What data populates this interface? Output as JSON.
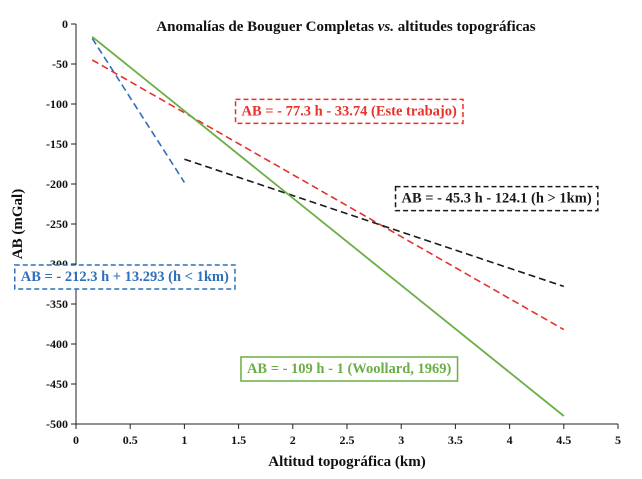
{
  "chart_data": {
    "type": "line",
    "title": "Anomalías de Bouguer Completas vs. altitudes topográficas",
    "title_parts": {
      "before": "Anomalías de Bouguer Completas ",
      "italic": "vs.",
      "after": " altitudes topográficas"
    },
    "xlabel": "Altitud topográfica (km)",
    "ylabel": "AB (mGal)",
    "xlim": [
      0,
      5
    ],
    "ylim": [
      -500,
      0
    ],
    "xticks": [
      0,
      0.5,
      1,
      1.5,
      2,
      2.5,
      3,
      3.5,
      4,
      4.5,
      5
    ],
    "xtick_labels": [
      "0",
      "0.5",
      "1",
      "1.5",
      "2",
      "2.5",
      "3",
      "3.5",
      "4",
      "4.5",
      "5"
    ],
    "yticks": [
      0,
      -50,
      -100,
      -150,
      -200,
      -250,
      -300,
      -350,
      -400,
      -450,
      -500
    ],
    "ytick_labels": [
      "0",
      "-50",
      "-100",
      "-150",
      "-200",
      "-250",
      "-300",
      "-350",
      "-400",
      "-450",
      "-500"
    ],
    "grid": false,
    "series": [
      {
        "name": "blue",
        "color": "#2e6fba",
        "dash": "dashed",
        "x": [
          0.15,
          1.0
        ],
        "y": [
          -18,
          -198
        ],
        "annotation": "AB = - 212.3 h + 13.293 (h < 1km)",
        "annotation_at": [
          0.45,
          -315
        ]
      },
      {
        "name": "red",
        "color": "#e8312a",
        "dash": "dashed",
        "x": [
          0.15,
          4.5
        ],
        "y": [
          -45,
          -382
        ],
        "annotation": "AB = - 77.3 h - 33.74 (Este trabajo)",
        "annotation_at": [
          2.52,
          -108
        ]
      },
      {
        "name": "black",
        "color": "#1a1a1a",
        "dash": "dashed",
        "x": [
          1.0,
          4.5
        ],
        "y": [
          -169,
          -328
        ],
        "annotation": "AB = - 45.3 h  - 124.1 (h > 1km)",
        "annotation_at": [
          3.88,
          -217
        ]
      },
      {
        "name": "green",
        "color": "#6aae46",
        "dash": "solid",
        "x": [
          0.15,
          4.5
        ],
        "y": [
          -16,
          -490
        ],
        "annotation": "AB = - 109 h  - 1 (Woollard, 1969)",
        "annotation_at": [
          2.52,
          -430
        ]
      }
    ]
  }
}
